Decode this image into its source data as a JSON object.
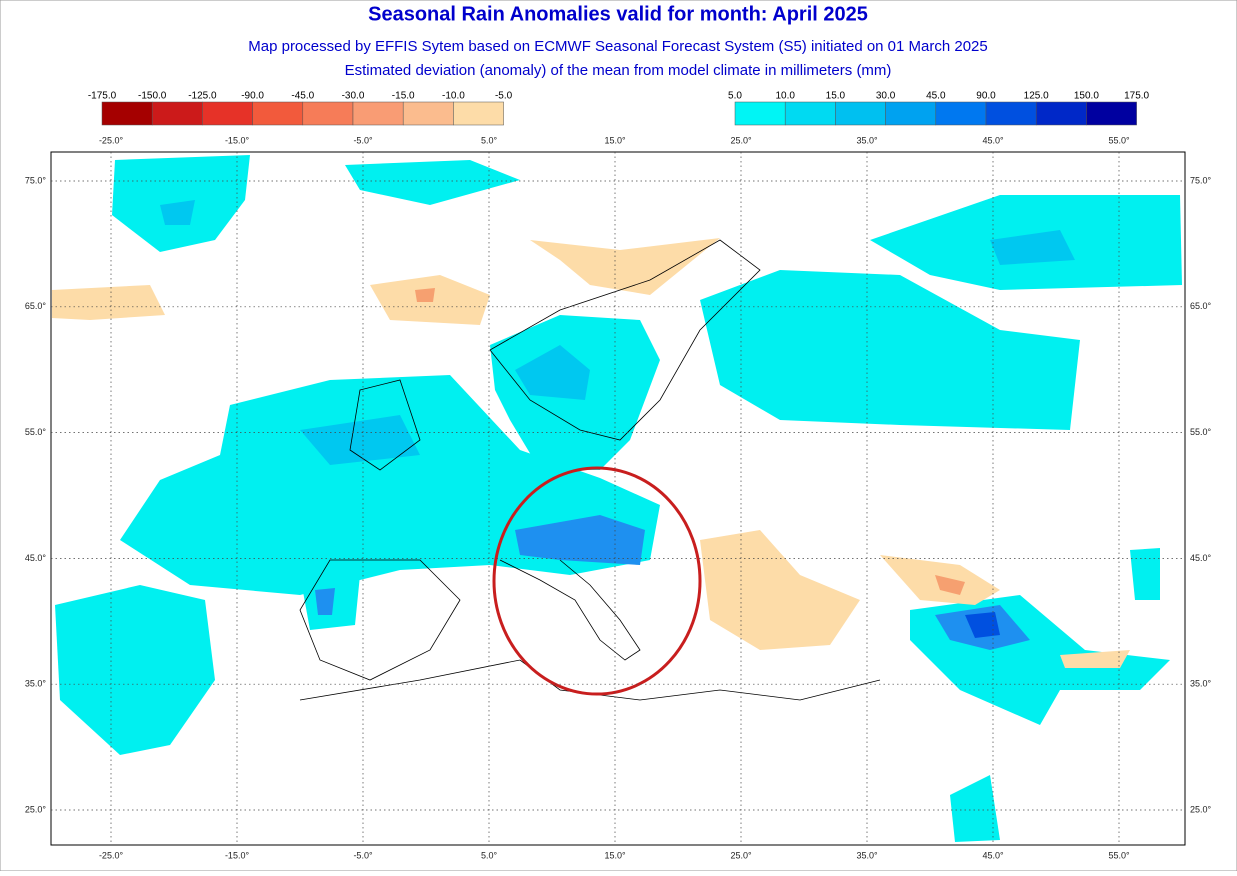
{
  "header": {
    "title": "Seasonal Rain Anomalies valid for month: April 2025",
    "subtitle": "Map processed by EFFIS Sytem based on ECMWF Seasonal Forecast System (S5) initiated on 01 March 2025",
    "description": "Estimated deviation (anomaly) of the mean from model climate in millimeters (mm)"
  },
  "legend": {
    "negative": {
      "labels": [
        "-175.0",
        "-150.0",
        "-125.0",
        "-90.0",
        "-45.0",
        "-30.0",
        "-15.0",
        "-10.0",
        "-5.0"
      ],
      "colors": [
        "#a50000",
        "#cc1a1a",
        "#e63228",
        "#f25a3c",
        "#f67c58",
        "#f99c74",
        "#fbbc8e",
        "#fddca8"
      ]
    },
    "positive": {
      "labels": [
        "5.0",
        "10.0",
        "15.0",
        "30.0",
        "45.0",
        "90.0",
        "125.0",
        "150.0",
        "175.0"
      ],
      "colors": [
        "#00f5f5",
        "#00daf2",
        "#00c0f0",
        "#00a2f0",
        "#0078f0",
        "#0050e0",
        "#0028c8",
        "#0000a0"
      ]
    }
  },
  "map": {
    "lon_labels": [
      "-25.0°",
      "-15.0°",
      "-5.0°",
      "5.0°",
      "15.0°",
      "25.0°",
      "35.0°",
      "45.0°",
      "55.0°"
    ],
    "lat_labels": [
      "75.0°",
      "65.0°",
      "55.0°",
      "45.0°",
      "35.0°",
      "25.0°"
    ]
  }
}
